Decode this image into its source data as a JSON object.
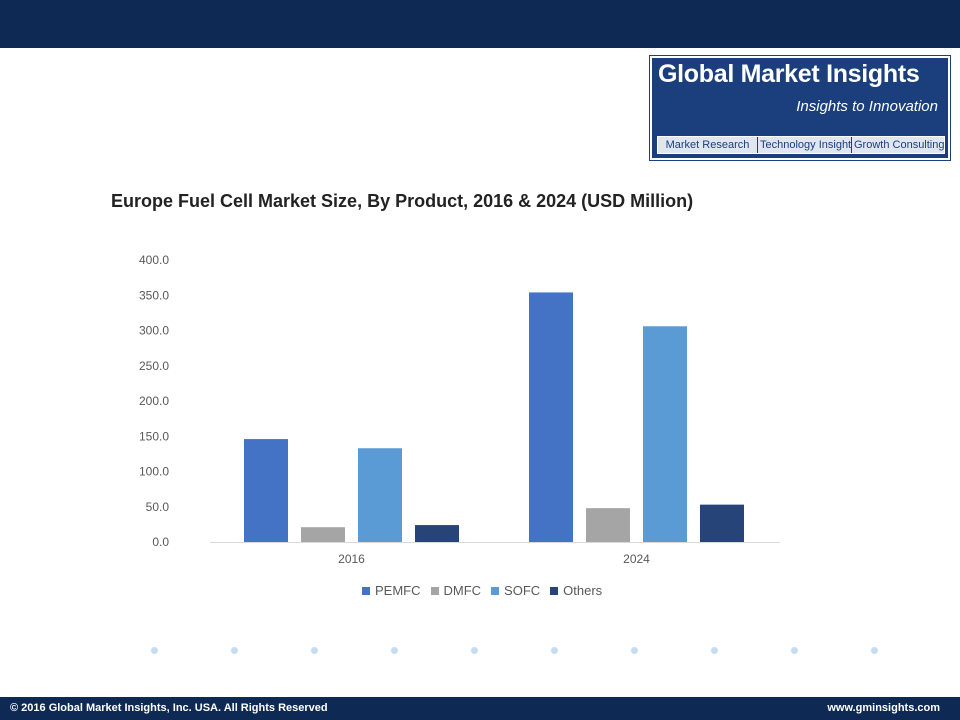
{
  "logo": {
    "name": "Global Market Insights",
    "tagline": "Insights to Innovation",
    "strip": [
      "Market Research",
      "Technology Insights",
      "Growth Consulting"
    ]
  },
  "chart_data": {
    "type": "bar",
    "title": "Europe Fuel Cell Market Size, By Product, 2016 & 2024 (USD Million)",
    "xlabel": "",
    "ylabel": "",
    "categories": [
      "2016",
      "2024"
    ],
    "ylim": [
      0,
      400
    ],
    "yticks": [
      "0.0",
      "50.0",
      "100.0",
      "150.0",
      "200.0",
      "250.0",
      "300.0",
      "350.0",
      "400.0"
    ],
    "grid": false,
    "legend_position": "bottom",
    "series": [
      {
        "name": "PEMFC",
        "color": "#4472c4",
        "values": [
          146,
          354
        ]
      },
      {
        "name": "DMFC",
        "color": "#a5a5a5",
        "values": [
          21,
          48
        ]
      },
      {
        "name": "SOFC",
        "color": "#5b9bd5",
        "values": [
          133,
          306
        ]
      },
      {
        "name": "Others",
        "color": "#264478",
        "values": [
          24,
          53
        ]
      }
    ]
  },
  "footer": {
    "copyright": "© 2016 Global Market Insights, Inc. USA.  All Rights Reserved",
    "website": "www.gminsights.com"
  }
}
